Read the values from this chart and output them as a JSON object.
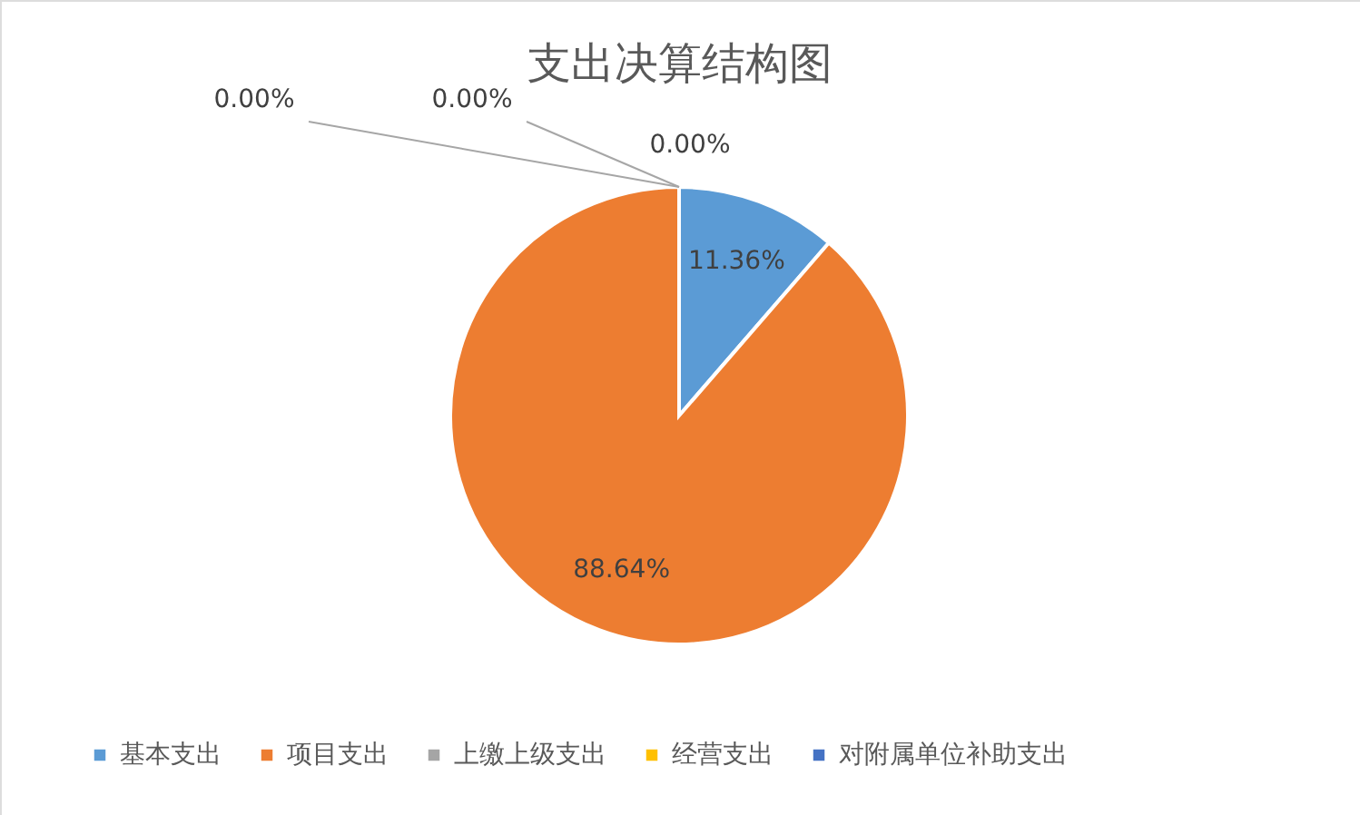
{
  "chart_data": {
    "type": "pie",
    "title": "支出决算结构图",
    "categories": [
      "基本支出",
      "项目支出",
      "上缴上级支出",
      "经营支出",
      "对附属单位补助支出"
    ],
    "values": [
      11.36,
      88.64,
      0,
      0,
      0
    ],
    "value_labels": [
      "11.36%",
      "88.64%",
      "0.00%",
      "0.00%",
      "0.00%"
    ],
    "colors": [
      "#5b9bd5",
      "#ed7d31",
      "#a5a5a5",
      "#ffc000",
      "#4472c4"
    ],
    "legend": "bottom"
  }
}
